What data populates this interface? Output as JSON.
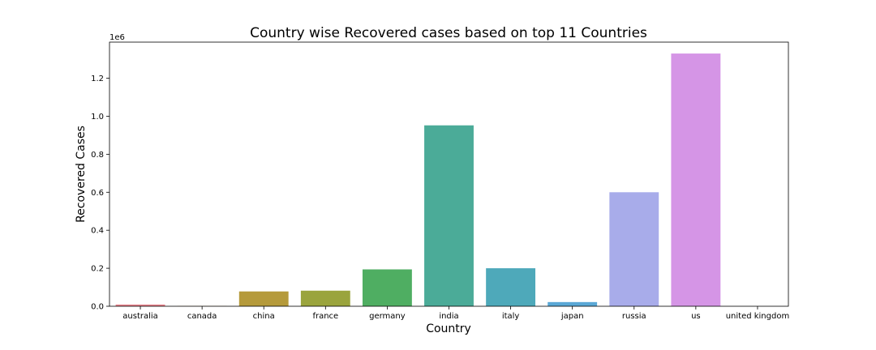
{
  "chart_data": {
    "type": "bar",
    "title": "Country wise Recovered cases based on top 11 Countries",
    "xlabel": "Country",
    "ylabel": "Recovered Cases",
    "y_offset_label": "1e6",
    "y_scale": 1000000,
    "ylim": [
      0,
      1390000
    ],
    "yticks": [
      0,
      200000,
      400000,
      600000,
      800000,
      1000000,
      1200000
    ],
    "ytick_labels": [
      "0.0",
      "0.2",
      "0.4",
      "0.6",
      "0.8",
      "1.0",
      "1.2"
    ],
    "grid": false,
    "categories": [
      "australia",
      "canada",
      "china",
      "france",
      "germany",
      "india",
      "italy",
      "japan",
      "russia",
      "us",
      "united kingdom"
    ],
    "values": [
      9000,
      1000,
      78000,
      82000,
      194000,
      952000,
      200000,
      22000,
      600000,
      1330000,
      0
    ],
    "colors": [
      "#e9818a",
      "#d98c4e",
      "#b59a3b",
      "#9aa43d",
      "#4fae62",
      "#4bab98",
      "#4ea9ba",
      "#5aa8d6",
      "#a8acea",
      "#d595e6",
      "#e286c8"
    ]
  }
}
